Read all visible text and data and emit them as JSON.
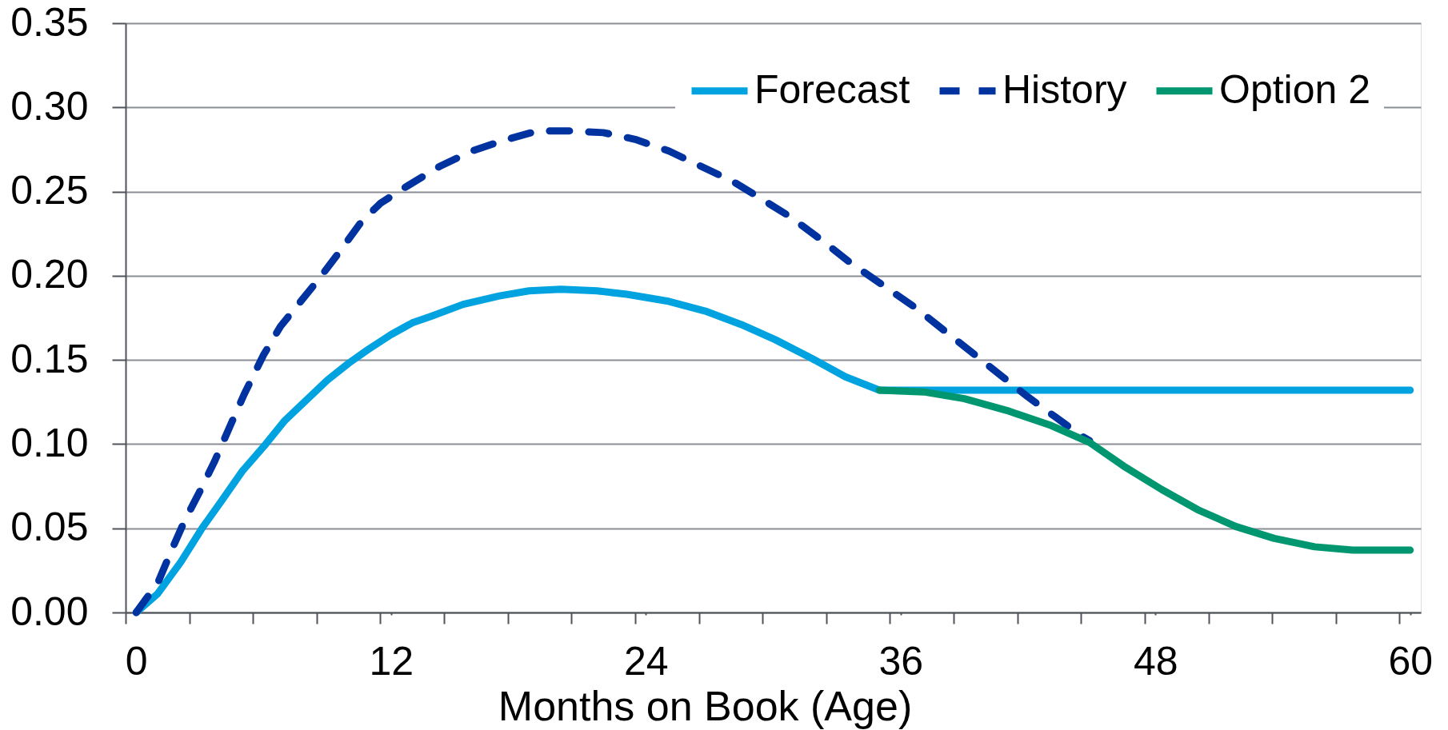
{
  "chart_data": {
    "type": "line",
    "xlabel": "Months on Book (Age)",
    "xlim": [
      -0.5,
      60.5
    ],
    "xticks": [
      {
        "value": -0.5,
        "label": null
      },
      0,
      {
        "value": 2.5,
        "label": null
      },
      {
        "value": 5.5,
        "label": null
      },
      {
        "value": 8.5,
        "label": null
      },
      {
        "value": 11.5,
        "label": null
      },
      12,
      {
        "value": 14.5,
        "label": null
      },
      {
        "value": 17.5,
        "label": null
      },
      {
        "value": 20.5,
        "label": null
      },
      {
        "value": 23.5,
        "label": null
      },
      24,
      {
        "value": 26.5,
        "label": null
      },
      {
        "value": 29.5,
        "label": null
      },
      {
        "value": 32.5,
        "label": null
      },
      {
        "value": 35.5,
        "label": null
      },
      36,
      {
        "value": 38.5,
        "label": null
      },
      {
        "value": 41.5,
        "label": null
      },
      {
        "value": 44.5,
        "label": null
      },
      {
        "value": 47.5,
        "label": null
      },
      48,
      {
        "value": 50.5,
        "label": null
      },
      {
        "value": 53.5,
        "label": null
      },
      {
        "value": 56.5,
        "label": null
      },
      {
        "value": 59.5,
        "label": null
      },
      60
    ],
    "ylim": [
      0,
      0.35
    ],
    "yticks": [
      {
        "value": 0,
        "label": "0.00"
      },
      {
        "value": 0.05,
        "label": "0.05"
      },
      {
        "value": 0.1,
        "label": "0.10"
      },
      {
        "value": 0.15,
        "label": "0.15"
      },
      {
        "value": 0.2,
        "label": "0.20"
      },
      {
        "value": 0.25,
        "label": "0.25"
      },
      {
        "value": 0.3,
        "label": "0.30"
      },
      {
        "value": 0.35,
        "label": "0.35"
      }
    ],
    "grid": "y",
    "legend": "top right",
    "series": [
      {
        "name": "Forecast",
        "color": "#00a3e0",
        "x": [
          0,
          1,
          2.1,
          3.1,
          4,
          5,
          6.1,
          7,
          8,
          9,
          10,
          10.9,
          12,
          13,
          13.9,
          15.4,
          17.1,
          18.5,
          20,
          21.7,
          23.1,
          25,
          26.8,
          28.5,
          30.1,
          31.8,
          33.4,
          35,
          60
        ],
        "values": [
          0,
          0.011,
          0.03,
          0.05,
          0.066,
          0.084,
          0.1,
          0.114,
          0.126,
          0.138,
          0.148,
          0.156,
          0.165,
          0.172,
          0.176,
          0.183,
          0.188,
          0.191,
          0.192,
          0.191,
          0.189,
          0.185,
          0.179,
          0.171,
          0.162,
          0.151,
          0.14,
          0.132,
          0.132
        ]
      },
      {
        "name": "History",
        "color": "#0033a0",
        "line_style": "dashed",
        "x": [
          0,
          0.4,
          1,
          1.7,
          2.3,
          3,
          3.7,
          4.5,
          5.1,
          6,
          6.8,
          7.7,
          8.6,
          9.5,
          10.6,
          11.5,
          12.6,
          14.3,
          15.8,
          17.2,
          18.9,
          20.4,
          22,
          23.5,
          25.1,
          26.6,
          28.1,
          29.4,
          30.8,
          32.3,
          33.6,
          35.1,
          36.7,
          38.3,
          39.6,
          40.8,
          42,
          43.3,
          44.5,
          44.9
        ],
        "values": [
          0,
          0.007,
          0.017,
          0.038,
          0.055,
          0.072,
          0.09,
          0.113,
          0.13,
          0.153,
          0.17,
          0.184,
          0.198,
          0.213,
          0.232,
          0.243,
          0.252,
          0.265,
          0.274,
          0.28,
          0.286,
          0.286,
          0.285,
          0.281,
          0.274,
          0.265,
          0.256,
          0.246,
          0.235,
          0.221,
          0.208,
          0.195,
          0.181,
          0.165,
          0.152,
          0.14,
          0.128,
          0.116,
          0.105,
          0.102
        ]
      },
      {
        "name": "Option 2",
        "color": "#009670",
        "x": [
          35,
          37.1,
          39,
          41,
          43.1,
          44.9,
          46.5,
          48.3,
          50,
          51.8,
          53.6,
          55.5,
          57.3,
          60
        ],
        "values": [
          0.132,
          0.131,
          0.127,
          0.12,
          0.111,
          0.101,
          0.087,
          0.073,
          0.061,
          0.051,
          0.044,
          0.039,
          0.037,
          0.037
        ]
      }
    ]
  }
}
